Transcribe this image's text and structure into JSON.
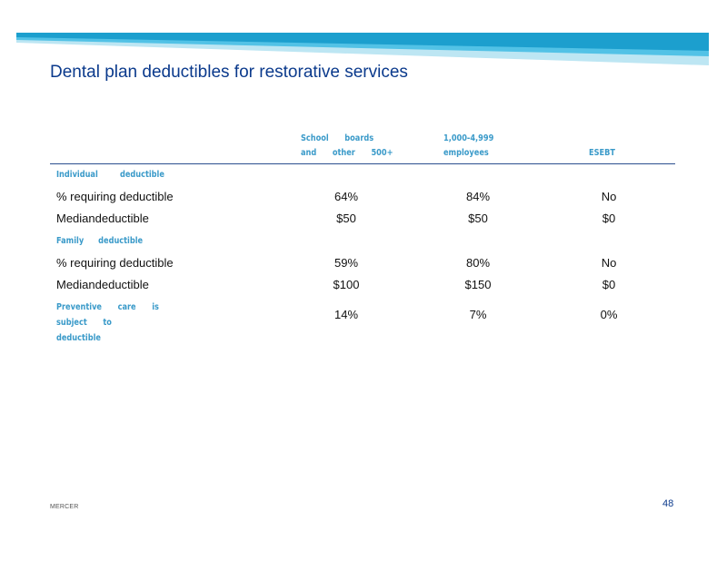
{
  "slide": {
    "title": "Dental plan deductibles for restorative services",
    "footer_logo": "MERCER",
    "page_number": "48"
  },
  "colors": {
    "banner_light": "#bde6f3",
    "banner_mid": "#52c2e6",
    "banner_dark": "#1c9fce",
    "title": "#0b3a8c",
    "header_text": "#3a9ac9",
    "rule": "#2c4f8f"
  },
  "table": {
    "columns": {
      "school_line1": "School boards",
      "school_line2": "and other 500+",
      "large_line1": "1,000-4,999",
      "large_line2": "employees",
      "esebt": "ESEBT"
    },
    "sections": {
      "individual": "Individual deductible",
      "family": "Family deductible"
    },
    "rows": [
      {
        "label": "% requiring deductible",
        "school": "64%",
        "large": "84%",
        "esebt": "No"
      },
      {
        "label": "Mediandeductible",
        "school": "$50",
        "large": "$50",
        "esebt": "$0"
      },
      {
        "label": "% requiring deductible",
        "school": "59%",
        "large": "80%",
        "esebt": "No"
      },
      {
        "label": "Mediandeductible",
        "school": "$100",
        "large": "$150",
        "esebt": "$0"
      }
    ],
    "preventive": {
      "label": "Preventive care is subject to deductible",
      "school": "14%",
      "large": "7%",
      "esebt": "0%"
    }
  }
}
